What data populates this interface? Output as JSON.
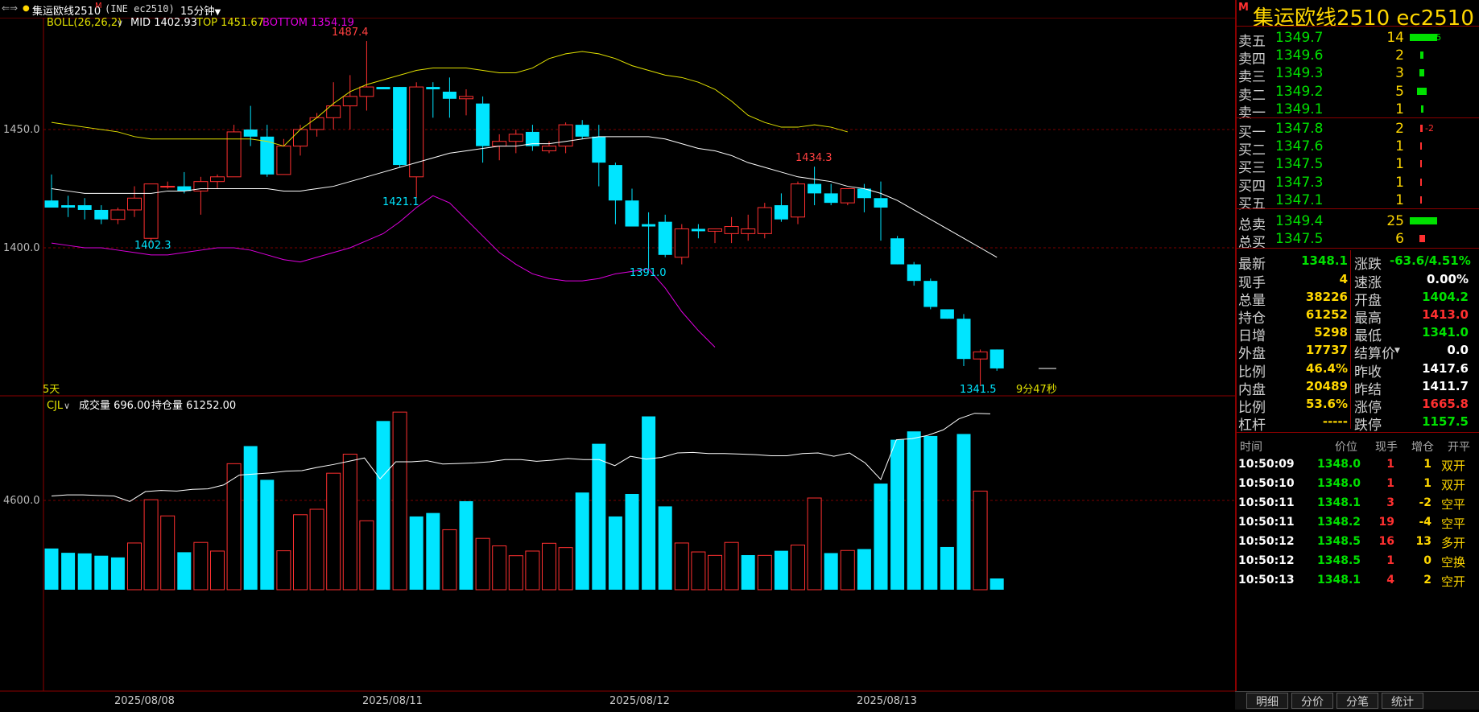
{
  "topbar": {
    "symbol": "集运欧线2510",
    "badge": "M",
    "exchange_code": "(INE ec2510)",
    "period": "15分钟"
  },
  "indicator": {
    "boll_label": "BOLL(26,26,2)",
    "mid": "MID 1402.93",
    "top": "TOP 1451.67",
    "bottom": "BOTTOM 1354.19"
  },
  "volume_panel": {
    "label": "CJL",
    "volume": "成交量 696.00",
    "open_interest": "持仓量 61252.00",
    "y_tick": "4600.0"
  },
  "chart_labels": {
    "days": "5天",
    "countdown": "9分47秒",
    "price_ticks": [
      "1450.0",
      "1400.0"
    ],
    "annotations": [
      {
        "text": "1487.4",
        "color": "#ff4040"
      },
      {
        "text": "1421.1",
        "color": "#00e5ff"
      },
      {
        "text": "1402.3",
        "color": "#00e5ff"
      },
      {
        "text": "1391.0",
        "color": "#00e5ff"
      },
      {
        "text": "1434.3",
        "color": "#ff4040"
      },
      {
        "text": "1341.5",
        "color": "#00e5ff"
      }
    ],
    "dates": [
      "2025/08/08",
      "2025/08/11",
      "2025/08/12",
      "2025/08/13"
    ]
  },
  "colors": {
    "up": "#ff3030",
    "down": "#00e5ff",
    "mid_line": "#ffffff",
    "top_line": "#e0e000",
    "bottom_line": "#e000e0"
  },
  "chart_data": {
    "type": "candlestick",
    "price_range": [
      1339,
      1496
    ],
    "candles": [
      {
        "o": 1420,
        "h": 1431,
        "l": 1417,
        "c": 1417
      },
      {
        "o": 1418,
        "h": 1422,
        "l": 1413,
        "c": 1417
      },
      {
        "o": 1418,
        "h": 1421,
        "l": 1412,
        "c": 1416
      },
      {
        "o": 1416,
        "h": 1418,
        "l": 1410,
        "c": 1412
      },
      {
        "o": 1412,
        "h": 1417,
        "l": 1410,
        "c": 1416
      },
      {
        "o": 1416,
        "h": 1426,
        "l": 1413,
        "c": 1421
      },
      {
        "o": 1404,
        "h": 1427,
        "l": 1402,
        "c": 1427
      },
      {
        "o": 1426,
        "h": 1428,
        "l": 1425,
        "c": 1426
      },
      {
        "o": 1426,
        "h": 1432,
        "l": 1423,
        "c": 1424
      },
      {
        "o": 1424,
        "h": 1430,
        "l": 1414,
        "c": 1428
      },
      {
        "o": 1428,
        "h": 1431,
        "l": 1425,
        "c": 1430
      },
      {
        "o": 1430,
        "h": 1452,
        "l": 1430,
        "c": 1449
      },
      {
        "o": 1450,
        "h": 1460,
        "l": 1443,
        "c": 1447
      },
      {
        "o": 1447,
        "h": 1452,
        "l": 1430,
        "c": 1431
      },
      {
        "o": 1431,
        "h": 1446,
        "l": 1431,
        "c": 1443
      },
      {
        "o": 1443,
        "h": 1452,
        "l": 1439,
        "c": 1450
      },
      {
        "o": 1450,
        "h": 1457,
        "l": 1447,
        "c": 1455
      },
      {
        "o": 1455,
        "h": 1470,
        "l": 1450,
        "c": 1460
      },
      {
        "o": 1460,
        "h": 1473,
        "l": 1450,
        "c": 1464
      },
      {
        "o": 1464,
        "h": 1487.4,
        "l": 1458,
        "c": 1468
      },
      {
        "o": 1468,
        "h": 1468,
        "l": 1467,
        "c": 1467
      },
      {
        "o": 1468,
        "h": 1468,
        "l": 1434,
        "c": 1435
      },
      {
        "o": 1430,
        "h": 1470,
        "l": 1421.1,
        "c": 1468
      },
      {
        "o": 1468,
        "h": 1470,
        "l": 1455,
        "c": 1467
      },
      {
        "o": 1466,
        "h": 1472,
        "l": 1455,
        "c": 1463
      },
      {
        "o": 1463,
        "h": 1467,
        "l": 1456,
        "c": 1464
      },
      {
        "o": 1461,
        "h": 1464,
        "l": 1436,
        "c": 1443
      },
      {
        "o": 1443,
        "h": 1448,
        "l": 1437,
        "c": 1445
      },
      {
        "o": 1445,
        "h": 1450,
        "l": 1440,
        "c": 1448
      },
      {
        "o": 1449,
        "h": 1452,
        "l": 1441,
        "c": 1443
      },
      {
        "o": 1441,
        "h": 1445,
        "l": 1440,
        "c": 1443
      },
      {
        "o": 1443,
        "h": 1453,
        "l": 1440,
        "c": 1452
      },
      {
        "o": 1452,
        "h": 1454,
        "l": 1446,
        "c": 1447
      },
      {
        "o": 1447,
        "h": 1452,
        "l": 1426,
        "c": 1436
      },
      {
        "o": 1435,
        "h": 1436,
        "l": 1410,
        "c": 1420
      },
      {
        "o": 1420,
        "h": 1425,
        "l": 1409,
        "c": 1409
      },
      {
        "o": 1410,
        "h": 1415,
        "l": 1391,
        "c": 1409
      },
      {
        "o": 1411,
        "h": 1414,
        "l": 1396,
        "c": 1397
      },
      {
        "o": 1396,
        "h": 1410,
        "l": 1393,
        "c": 1408
      },
      {
        "o": 1408,
        "h": 1410,
        "l": 1404,
        "c": 1407
      },
      {
        "o": 1407,
        "h": 1408,
        "l": 1402,
        "c": 1408
      },
      {
        "o": 1406,
        "h": 1413,
        "l": 1402,
        "c": 1409
      },
      {
        "o": 1406,
        "h": 1414,
        "l": 1403,
        "c": 1408
      },
      {
        "o": 1406,
        "h": 1419,
        "l": 1404,
        "c": 1417
      },
      {
        "o": 1418,
        "h": 1423,
        "l": 1411,
        "c": 1412
      },
      {
        "o": 1413,
        "h": 1428,
        "l": 1410,
        "c": 1427
      },
      {
        "o": 1427,
        "h": 1434.3,
        "l": 1418,
        "c": 1423
      },
      {
        "o": 1423,
        "h": 1427,
        "l": 1418,
        "c": 1419
      },
      {
        "o": 1419,
        "h": 1425,
        "l": 1418,
        "c": 1425
      },
      {
        "o": 1425,
        "h": 1427,
        "l": 1415,
        "c": 1421
      },
      {
        "o": 1421,
        "h": 1428,
        "l": 1403,
        "c": 1417
      },
      {
        "o": 1404,
        "h": 1405,
        "l": 1393,
        "c": 1393
      },
      {
        "o": 1393,
        "h": 1394,
        "l": 1384,
        "c": 1386
      },
      {
        "o": 1386,
        "h": 1387,
        "l": 1374,
        "c": 1375
      },
      {
        "o": 1374,
        "h": 1373,
        "l": 1370,
        "c": 1370
      },
      {
        "o": 1370,
        "h": 1372,
        "l": 1350,
        "c": 1353
      },
      {
        "o": 1353,
        "h": 1357,
        "l": 1341.5,
        "c": 1356
      },
      {
        "o": 1357,
        "h": 1357,
        "l": 1348,
        "c": 1349
      }
    ],
    "mid_line": [
      1425,
      1424,
      1423,
      1423,
      1423,
      1423,
      1423,
      1424,
      1424,
      1425,
      1425,
      1425,
      1425,
      1425,
      1424,
      1424,
      1425,
      1426,
      1428,
      1430,
      1432,
      1434,
      1436,
      1438,
      1440,
      1441,
      1442,
      1443,
      1443,
      1444,
      1444,
      1445,
      1446,
      1447,
      1447,
      1447,
      1447,
      1446,
      1444,
      1442,
      1441,
      1439,
      1436,
      1434,
      1432,
      1430,
      1429,
      1428,
      1426,
      1425,
      1423,
      1420,
      1416,
      1412,
      1408,
      1404,
      1400,
      1396
    ],
    "top_line": [
      1453,
      1452,
      1451,
      1450,
      1449,
      1447,
      1446,
      1446,
      1446,
      1446,
      1446,
      1446,
      1446,
      1445,
      1443,
      1450,
      1455,
      1461,
      1466,
      1469,
      1471,
      1473,
      1475,
      1476,
      1476,
      1476,
      1475,
      1474,
      1474,
      1476,
      1480,
      1482,
      1483,
      1482,
      1480,
      1477,
      1475,
      1473,
      1472,
      1470,
      1467,
      1462,
      1456,
      1453,
      1451,
      1451,
      1452,
      1451,
      1449
    ],
    "bottom_line": [
      1402,
      1401,
      1400,
      1400,
      1399,
      1398,
      1397,
      1397,
      1398,
      1399,
      1400,
      1400,
      1399,
      1397,
      1395,
      1394,
      1396,
      1398,
      1400,
      1403,
      1406,
      1411,
      1417,
      1422,
      1419,
      1412,
      1405,
      1398,
      1393,
      1389,
      1387,
      1386,
      1386,
      1387,
      1389,
      1390,
      1391,
      1383,
      1373,
      1365,
      1358
    ],
    "volume": [
      {
        "v": 1430,
        "up": false
      },
      {
        "v": 1280,
        "up": false
      },
      {
        "v": 1260,
        "up": false
      },
      {
        "v": 1180,
        "up": false
      },
      {
        "v": 1120,
        "up": false
      },
      {
        "v": 1620,
        "up": true
      },
      {
        "v": 3120,
        "up": true
      },
      {
        "v": 2560,
        "up": true
      },
      {
        "v": 1300,
        "up": false
      },
      {
        "v": 1640,
        "up": true
      },
      {
        "v": 1340,
        "up": true
      },
      {
        "v": 4370,
        "up": true
      },
      {
        "v": 4980,
        "up": false
      },
      {
        "v": 3810,
        "up": false
      },
      {
        "v": 1350,
        "up": true
      },
      {
        "v": 2600,
        "up": true
      },
      {
        "v": 2790,
        "up": true
      },
      {
        "v": 4040,
        "up": true
      },
      {
        "v": 4700,
        "up": true
      },
      {
        "v": 2390,
        "up": true
      },
      {
        "v": 5850,
        "up": false
      },
      {
        "v": 6160,
        "up": true
      },
      {
        "v": 2540,
        "up": false
      },
      {
        "v": 2660,
        "up": false
      },
      {
        "v": 2080,
        "up": true
      },
      {
        "v": 3070,
        "up": false
      },
      {
        "v": 1780,
        "up": true
      },
      {
        "v": 1520,
        "up": true
      },
      {
        "v": 1180,
        "up": true
      },
      {
        "v": 1340,
        "up": true
      },
      {
        "v": 1610,
        "up": true
      },
      {
        "v": 1460,
        "up": true
      },
      {
        "v": 3370,
        "up": false
      },
      {
        "v": 5060,
        "up": false
      },
      {
        "v": 2540,
        "up": false
      },
      {
        "v": 3320,
        "up": false
      },
      {
        "v": 6010,
        "up": false
      },
      {
        "v": 2890,
        "up": false
      },
      {
        "v": 1620,
        "up": true
      },
      {
        "v": 1310,
        "up": true
      },
      {
        "v": 1190,
        "up": true
      },
      {
        "v": 1640,
        "up": true
      },
      {
        "v": 1200,
        "up": false
      },
      {
        "v": 1190,
        "up": true
      },
      {
        "v": 1350,
        "up": false
      },
      {
        "v": 1550,
        "up": true
      },
      {
        "v": 3180,
        "up": true
      },
      {
        "v": 1270,
        "up": false
      },
      {
        "v": 1360,
        "up": true
      },
      {
        "v": 1410,
        "up": false
      },
      {
        "v": 3680,
        "up": false
      },
      {
        "v": 5200,
        "up": false
      },
      {
        "v": 5490,
        "up": false
      },
      {
        "v": 5330,
        "up": false
      },
      {
        "v": 1480,
        "up": false
      },
      {
        "v": 5400,
        "up": false
      },
      {
        "v": 3420,
        "up": true
      },
      {
        "v": 390,
        "up": false
      }
    ],
    "oi_line": [
      4700,
      4720,
      4720,
      4710,
      4700,
      4600,
      4780,
      4800,
      4790,
      4820,
      4830,
      4900,
      5080,
      5100,
      5120,
      5150,
      5160,
      5220,
      5270,
      5330,
      5390,
      5010,
      5320,
      5320,
      5340,
      5280,
      5290,
      5300,
      5320,
      5360,
      5360,
      5330,
      5350,
      5380,
      5360,
      5360,
      5250,
      5420,
      5370,
      5400,
      5480,
      5490,
      5470,
      5470,
      5460,
      5450,
      5430,
      5430,
      5470,
      5480,
      5420,
      5480,
      5300,
      5000,
      5720,
      5740,
      5800,
      5900,
      6100,
      6200,
      6190
    ],
    "volume_range": [
      0,
      6500
    ]
  },
  "quote": {
    "title": "集运欧线2510  ec2510",
    "badge": "M",
    "asks": [
      {
        "label": "卖五",
        "price": "1349.7",
        "qty": "14",
        "change": "+5",
        "bar": 0.6
      },
      {
        "label": "卖四",
        "price": "1349.6",
        "qty": "2",
        "change": "",
        "bar": 0.08
      },
      {
        "label": "卖三",
        "price": "1349.3",
        "qty": "3",
        "change": "",
        "bar": 0.12
      },
      {
        "label": "卖二",
        "price": "1349.2",
        "qty": "5",
        "change": "",
        "bar": 0.2
      },
      {
        "label": "卖一",
        "price": "1349.1",
        "qty": "1",
        "change": "",
        "bar": 0.04
      }
    ],
    "bids": [
      {
        "label": "买一",
        "price": "1347.8",
        "qty": "2",
        "change": "-2",
        "bar": 0.08
      },
      {
        "label": "买二",
        "price": "1347.6",
        "qty": "1",
        "change": "",
        "bar": 0.04
      },
      {
        "label": "买三",
        "price": "1347.5",
        "qty": "1",
        "change": "",
        "bar": 0.04
      },
      {
        "label": "买四",
        "price": "1347.3",
        "qty": "1",
        "change": "",
        "bar": 0.04
      },
      {
        "label": "买五",
        "price": "1347.1",
        "qty": "1",
        "change": "",
        "bar": 0.04
      }
    ],
    "totals": [
      {
        "label": "总卖",
        "price": "1349.4",
        "qty": "25",
        "bar_color": "#00e000",
        "bar": 0.9
      },
      {
        "label": "总买",
        "price": "1347.5",
        "qty": "6",
        "bar_color": "#ff3030",
        "bar": 0.2
      }
    ],
    "stats_left": [
      {
        "label": "最新",
        "value": "1348.1",
        "color": "#00e000"
      },
      {
        "label": "现手",
        "value": "4",
        "color": "#ffd700"
      },
      {
        "label": "总量",
        "value": "38226",
        "color": "#ffd700"
      },
      {
        "label": "持仓",
        "value": "61252",
        "color": "#ffd700"
      },
      {
        "label": "日增",
        "value": "5298",
        "color": "#ffd700"
      },
      {
        "label": "外盘",
        "value": "17737",
        "color": "#ffd700"
      },
      {
        "label": "比例",
        "value": "46.4%",
        "color": "#ffd700"
      },
      {
        "label": "内盘",
        "value": "20489",
        "color": "#ffd700"
      },
      {
        "label": "比例",
        "value": "53.6%",
        "color": "#ffd700"
      },
      {
        "label": "杠杆",
        "value": "-----",
        "color": "#ffd700"
      }
    ],
    "stats_right": [
      {
        "label": "涨跌",
        "value": "-63.6/4.51%",
        "color": "#00e000"
      },
      {
        "label": "速涨",
        "value": "0.00%",
        "color": "#ffffff"
      },
      {
        "label": "开盘",
        "value": "1404.2",
        "color": "#00e000"
      },
      {
        "label": "最高",
        "value": "1413.0",
        "color": "#ff3030"
      },
      {
        "label": "最低",
        "value": "1341.0",
        "color": "#00e000"
      },
      {
        "label": "结算价",
        "value": "0.0",
        "color": "#ffffff"
      },
      {
        "label": "昨收",
        "value": "1417.6",
        "color": "#ffffff"
      },
      {
        "label": "昨结",
        "value": "1411.7",
        "color": "#ffffff"
      },
      {
        "label": "涨停",
        "value": "1665.8",
        "color": "#ff3030"
      },
      {
        "label": "跌停",
        "value": "1157.5",
        "color": "#00e000"
      }
    ],
    "ticks_header": [
      "时间",
      "价位",
      "现手",
      "增仓",
      "开平"
    ],
    "ticks": [
      {
        "time": "10:50:09",
        "price": "1348.0",
        "qty": "1",
        "oi": "1",
        "type": "双开",
        "type_color": "#ffd700"
      },
      {
        "time": "10:50:10",
        "price": "1348.0",
        "qty": "1",
        "oi": "1",
        "type": "双开",
        "type_color": "#ffd700"
      },
      {
        "time": "10:50:11",
        "price": "1348.1",
        "qty": "3",
        "oi": "-2",
        "type": "空平",
        "type_color": "#ffd700"
      },
      {
        "time": "10:50:11",
        "price": "1348.2",
        "qty": "19",
        "oi": "-4",
        "type": "空平",
        "type_color": "#ffd700"
      },
      {
        "time": "10:50:12",
        "price": "1348.5",
        "qty": "16",
        "oi": "13",
        "type": "多开",
        "type_color": "#ffd700"
      },
      {
        "time": "10:50:12",
        "price": "1348.5",
        "qty": "1",
        "oi": "0",
        "type": "空换",
        "type_color": "#ffd700"
      },
      {
        "time": "10:50:13",
        "price": "1348.1",
        "qty": "4",
        "oi": "2",
        "type": "空开",
        "type_color": "#ffd700"
      }
    ],
    "tabs": [
      "明细",
      "分价",
      "分笔",
      "统计"
    ]
  }
}
